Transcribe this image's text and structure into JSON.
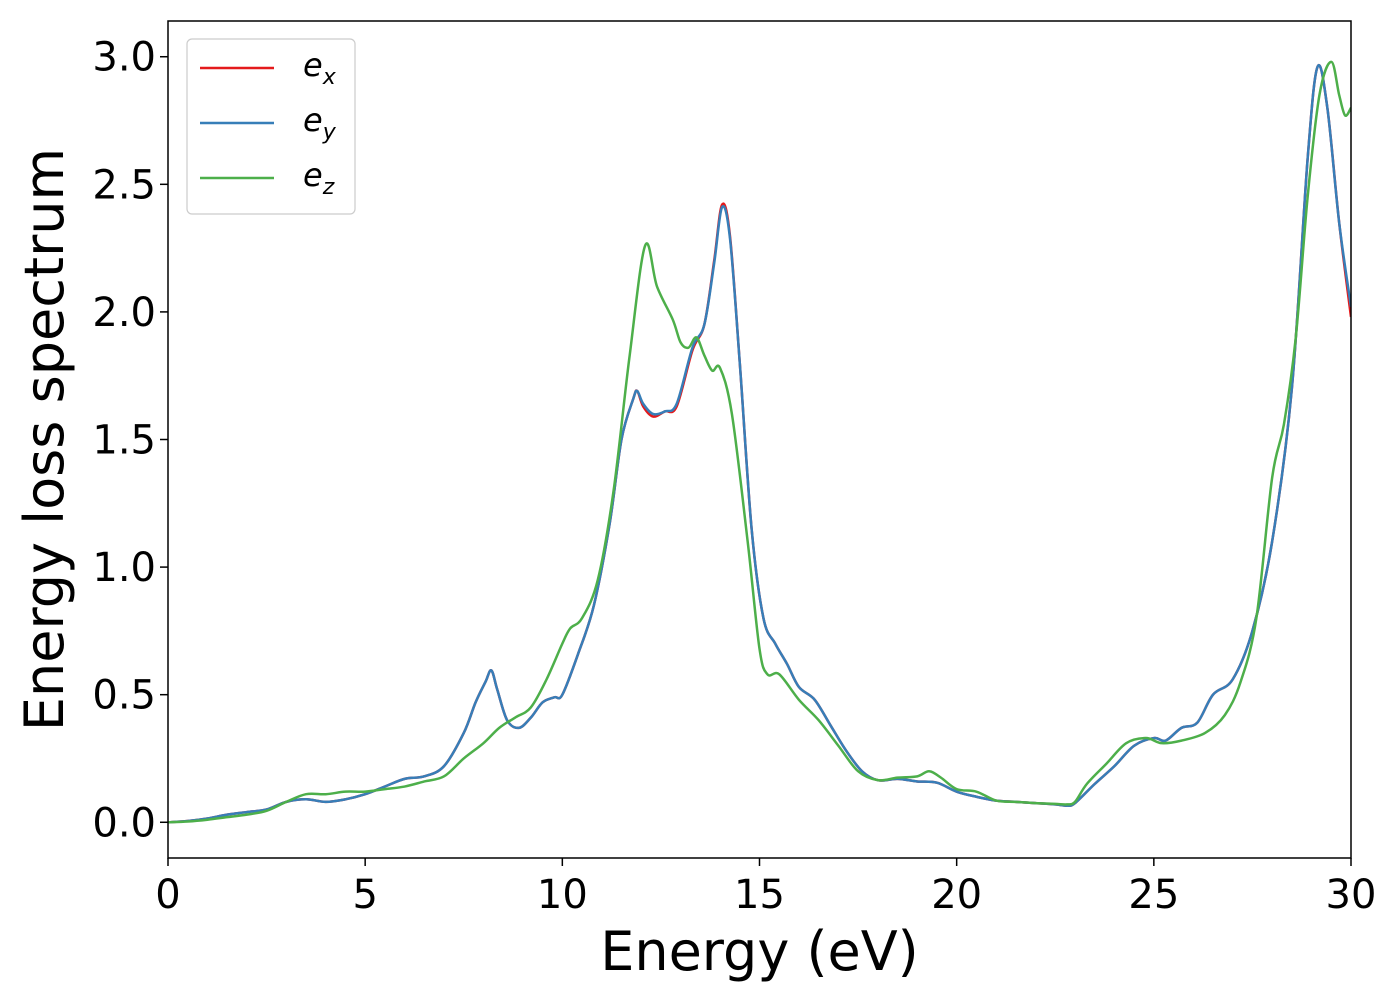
{
  "chart_data": {
    "type": "line",
    "xlabel": "Energy (eV)",
    "ylabel": "Energy loss spectrum",
    "xlim": [
      0,
      30
    ],
    "ylim": [
      -0.14,
      3.14
    ],
    "xticks": [
      0,
      5,
      10,
      15,
      20,
      25,
      30
    ],
    "xtick_labels": [
      "0",
      "5",
      "10",
      "15",
      "20",
      "25",
      "30"
    ],
    "yticks": [
      0.0,
      0.5,
      1.0,
      1.5,
      2.0,
      2.5,
      3.0
    ],
    "ytick_labels": [
      "0.0",
      "0.5",
      "1.0",
      "1.5",
      "2.0",
      "2.5",
      "3.0"
    ],
    "grid": false,
    "legend_position": "top-left",
    "series": [
      {
        "name": "e_x",
        "label_base": "e",
        "label_sub": "x",
        "color": "#e41a1c",
        "points": [
          [
            0,
            0.0
          ],
          [
            0.5,
            0.005
          ],
          [
            1,
            0.015
          ],
          [
            1.5,
            0.03
          ],
          [
            2,
            0.04
          ],
          [
            2.5,
            0.05
          ],
          [
            3,
            0.08
          ],
          [
            3.5,
            0.09
          ],
          [
            4,
            0.08
          ],
          [
            4.5,
            0.09
          ],
          [
            5,
            0.11
          ],
          [
            5.5,
            0.14
          ],
          [
            6,
            0.17
          ],
          [
            6.5,
            0.18
          ],
          [
            7,
            0.22
          ],
          [
            7.5,
            0.35
          ],
          [
            7.8,
            0.47
          ],
          [
            8.05,
            0.55
          ],
          [
            8.2,
            0.595
          ],
          [
            8.35,
            0.52
          ],
          [
            8.6,
            0.4
          ],
          [
            8.9,
            0.37
          ],
          [
            9.2,
            0.41
          ],
          [
            9.5,
            0.47
          ],
          [
            9.8,
            0.49
          ],
          [
            10,
            0.5
          ],
          [
            10.4,
            0.66
          ],
          [
            10.8,
            0.85
          ],
          [
            11.2,
            1.17
          ],
          [
            11.5,
            1.5
          ],
          [
            11.8,
            1.66
          ],
          [
            11.9,
            1.69
          ],
          [
            12.05,
            1.63
          ],
          [
            12.3,
            1.59
          ],
          [
            12.6,
            1.61
          ],
          [
            12.9,
            1.63
          ],
          [
            13.3,
            1.85
          ],
          [
            13.6,
            1.95
          ],
          [
            13.85,
            2.2
          ],
          [
            14.05,
            2.42
          ],
          [
            14.25,
            2.3
          ],
          [
            14.5,
            1.8
          ],
          [
            14.8,
            1.15
          ],
          [
            15.1,
            0.8
          ],
          [
            15.4,
            0.7
          ],
          [
            15.7,
            0.62
          ],
          [
            16,
            0.53
          ],
          [
            16.4,
            0.48
          ],
          [
            16.8,
            0.38
          ],
          [
            17.2,
            0.28
          ],
          [
            17.6,
            0.2
          ],
          [
            18,
            0.165
          ],
          [
            18.5,
            0.17
          ],
          [
            19,
            0.16
          ],
          [
            19.5,
            0.155
          ],
          [
            20,
            0.12
          ],
          [
            20.5,
            0.1
          ],
          [
            21,
            0.085
          ],
          [
            21.5,
            0.08
          ],
          [
            22,
            0.075
          ],
          [
            22.5,
            0.07
          ],
          [
            22.8,
            0.065
          ],
          [
            23,
            0.075
          ],
          [
            23.5,
            0.15
          ],
          [
            24,
            0.22
          ],
          [
            24.5,
            0.3
          ],
          [
            25,
            0.33
          ],
          [
            25.3,
            0.32
          ],
          [
            25.7,
            0.37
          ],
          [
            26.1,
            0.39
          ],
          [
            26.5,
            0.5
          ],
          [
            27,
            0.56
          ],
          [
            27.5,
            0.75
          ],
          [
            28,
            1.1
          ],
          [
            28.5,
            1.7
          ],
          [
            28.9,
            2.6
          ],
          [
            29.15,
            2.96
          ],
          [
            29.4,
            2.8
          ],
          [
            29.7,
            2.35
          ],
          [
            30,
            1.98
          ]
        ]
      },
      {
        "name": "e_y",
        "label_base": "e",
        "label_sub": "y",
        "color": "#377eb8",
        "points": [
          [
            0,
            0.0
          ],
          [
            0.5,
            0.005
          ],
          [
            1,
            0.015
          ],
          [
            1.5,
            0.03
          ],
          [
            2,
            0.04
          ],
          [
            2.5,
            0.05
          ],
          [
            3,
            0.08
          ],
          [
            3.5,
            0.09
          ],
          [
            4,
            0.08
          ],
          [
            4.5,
            0.09
          ],
          [
            5,
            0.11
          ],
          [
            5.5,
            0.14
          ],
          [
            6,
            0.17
          ],
          [
            6.5,
            0.18
          ],
          [
            7,
            0.22
          ],
          [
            7.5,
            0.35
          ],
          [
            7.8,
            0.47
          ],
          [
            8.05,
            0.55
          ],
          [
            8.2,
            0.595
          ],
          [
            8.35,
            0.52
          ],
          [
            8.6,
            0.4
          ],
          [
            8.9,
            0.37
          ],
          [
            9.2,
            0.41
          ],
          [
            9.5,
            0.47
          ],
          [
            9.8,
            0.49
          ],
          [
            10,
            0.5
          ],
          [
            10.4,
            0.66
          ],
          [
            10.8,
            0.85
          ],
          [
            11.2,
            1.17
          ],
          [
            11.5,
            1.5
          ],
          [
            11.8,
            1.66
          ],
          [
            11.9,
            1.69
          ],
          [
            12.05,
            1.64
          ],
          [
            12.3,
            1.6
          ],
          [
            12.6,
            1.61
          ],
          [
            12.9,
            1.64
          ],
          [
            13.3,
            1.86
          ],
          [
            13.6,
            1.95
          ],
          [
            13.85,
            2.19
          ],
          [
            14.05,
            2.41
          ],
          [
            14.25,
            2.29
          ],
          [
            14.5,
            1.8
          ],
          [
            14.8,
            1.15
          ],
          [
            15.1,
            0.8
          ],
          [
            15.4,
            0.7
          ],
          [
            15.7,
            0.62
          ],
          [
            16,
            0.53
          ],
          [
            16.4,
            0.48
          ],
          [
            16.8,
            0.38
          ],
          [
            17.2,
            0.28
          ],
          [
            17.6,
            0.2
          ],
          [
            18,
            0.165
          ],
          [
            18.5,
            0.17
          ],
          [
            19,
            0.16
          ],
          [
            19.5,
            0.155
          ],
          [
            20,
            0.12
          ],
          [
            20.5,
            0.1
          ],
          [
            21,
            0.085
          ],
          [
            21.5,
            0.08
          ],
          [
            22,
            0.075
          ],
          [
            22.5,
            0.07
          ],
          [
            22.8,
            0.065
          ],
          [
            23,
            0.075
          ],
          [
            23.5,
            0.15
          ],
          [
            24,
            0.22
          ],
          [
            24.5,
            0.3
          ],
          [
            25,
            0.33
          ],
          [
            25.3,
            0.32
          ],
          [
            25.7,
            0.37
          ],
          [
            26.1,
            0.39
          ],
          [
            26.5,
            0.5
          ],
          [
            27,
            0.56
          ],
          [
            27.5,
            0.75
          ],
          [
            28,
            1.1
          ],
          [
            28.5,
            1.7
          ],
          [
            28.9,
            2.6
          ],
          [
            29.15,
            2.96
          ],
          [
            29.4,
            2.8
          ],
          [
            29.7,
            2.35
          ],
          [
            30,
            2.02
          ]
        ]
      },
      {
        "name": "e_z",
        "label_base": "e",
        "label_sub": "z",
        "color": "#4daf4a",
        "points": [
          [
            0,
            0.0
          ],
          [
            0.5,
            0.003
          ],
          [
            1,
            0.01
          ],
          [
            1.5,
            0.02
          ],
          [
            2,
            0.03
          ],
          [
            2.5,
            0.045
          ],
          [
            3,
            0.08
          ],
          [
            3.5,
            0.11
          ],
          [
            4,
            0.11
          ],
          [
            4.5,
            0.12
          ],
          [
            5,
            0.12
          ],
          [
            5.5,
            0.13
          ],
          [
            6,
            0.14
          ],
          [
            6.5,
            0.16
          ],
          [
            7,
            0.18
          ],
          [
            7.5,
            0.25
          ],
          [
            8,
            0.31
          ],
          [
            8.4,
            0.37
          ],
          [
            8.8,
            0.41
          ],
          [
            9.2,
            0.45
          ],
          [
            9.6,
            0.56
          ],
          [
            10,
            0.7
          ],
          [
            10.2,
            0.76
          ],
          [
            10.5,
            0.8
          ],
          [
            10.9,
            0.95
          ],
          [
            11.3,
            1.3
          ],
          [
            11.7,
            1.82
          ],
          [
            12.1,
            2.26
          ],
          [
            12.4,
            2.1
          ],
          [
            12.8,
            1.97
          ],
          [
            13,
            1.88
          ],
          [
            13.2,
            1.86
          ],
          [
            13.4,
            1.9
          ],
          [
            13.6,
            1.83
          ],
          [
            13.8,
            1.77
          ],
          [
            14,
            1.78
          ],
          [
            14.3,
            1.6
          ],
          [
            14.7,
            1.1
          ],
          [
            15,
            0.68
          ],
          [
            15.2,
            0.58
          ],
          [
            15.5,
            0.58
          ],
          [
            16,
            0.48
          ],
          [
            16.5,
            0.4
          ],
          [
            17,
            0.3
          ],
          [
            17.5,
            0.2
          ],
          [
            18,
            0.165
          ],
          [
            18.5,
            0.175
          ],
          [
            19,
            0.18
          ],
          [
            19.3,
            0.2
          ],
          [
            19.6,
            0.175
          ],
          [
            20,
            0.13
          ],
          [
            20.5,
            0.12
          ],
          [
            21,
            0.085
          ],
          [
            21.5,
            0.08
          ],
          [
            22,
            0.075
          ],
          [
            22.5,
            0.072
          ],
          [
            22.8,
            0.07
          ],
          [
            23,
            0.08
          ],
          [
            23.3,
            0.15
          ],
          [
            23.8,
            0.23
          ],
          [
            24.3,
            0.31
          ],
          [
            24.8,
            0.33
          ],
          [
            25.2,
            0.31
          ],
          [
            25.7,
            0.32
          ],
          [
            26.3,
            0.35
          ],
          [
            26.8,
            0.42
          ],
          [
            27.2,
            0.55
          ],
          [
            27.6,
            0.8
          ],
          [
            28,
            1.35
          ],
          [
            28.3,
            1.56
          ],
          [
            28.6,
            1.9
          ],
          [
            28.9,
            2.45
          ],
          [
            29.2,
            2.85
          ],
          [
            29.5,
            2.98
          ],
          [
            29.7,
            2.85
          ],
          [
            29.85,
            2.77
          ],
          [
            30,
            2.8
          ]
        ]
      }
    ]
  }
}
